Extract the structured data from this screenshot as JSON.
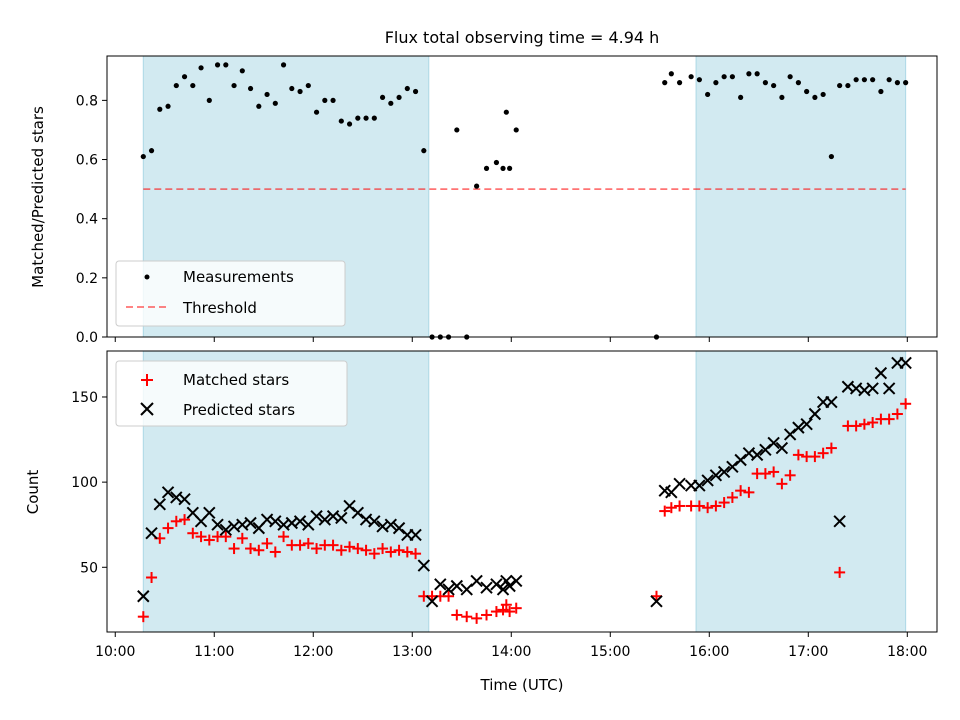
{
  "title": "Flux total observing time = 4.94 h",
  "colors": {
    "shade": "#add8e6",
    "measurement": "#000000",
    "threshold": "#ff0000",
    "matched": "#ff0000",
    "predicted": "#000000"
  },
  "chart_data": [
    {
      "type": "scatter",
      "panel": "top",
      "xlabel": "",
      "ylabel": "Matched/Predicted stars",
      "xlim": [
        "09:55",
        "18:18"
      ],
      "ylim": [
        0,
        0.95
      ],
      "yticks": [
        0.0,
        0.2,
        0.4,
        0.6,
        0.8
      ],
      "yticklabels": [
        "0.0",
        "0.2",
        "0.4",
        "0.6",
        "0.8"
      ],
      "grid": false,
      "legend_position": "lower-left",
      "shaded_intervals": [
        [
          "10:17",
          "13:10"
        ],
        [
          "15:52",
          "17:59"
        ]
      ],
      "threshold": {
        "name": "Threshold",
        "y": 0.5,
        "x_range": [
          "10:17",
          "17:59"
        ],
        "style": "dashed"
      },
      "series": [
        {
          "name": "Measurements",
          "marker": "dot",
          "x": [
            "10:17",
            "10:22",
            "10:27",
            "10:32",
            "10:37",
            "10:42",
            "10:47",
            "10:52",
            "10:57",
            "11:02",
            "11:07",
            "11:12",
            "11:17",
            "11:22",
            "11:27",
            "11:32",
            "11:37",
            "11:42",
            "11:47",
            "11:52",
            "11:57",
            "12:02",
            "12:07",
            "12:12",
            "12:17",
            "12:22",
            "12:27",
            "12:32",
            "12:37",
            "12:42",
            "12:47",
            "12:52",
            "12:57",
            "13:02",
            "13:07",
            "13:12",
            "13:17",
            "13:22",
            "13:27",
            "13:33",
            "13:39",
            "13:45",
            "13:51",
            "13:57",
            "14:03",
            "13:55",
            "13:59",
            "15:28",
            "15:33",
            "15:37",
            "15:42",
            "15:49",
            "15:54",
            "15:59",
            "16:04",
            "16:09",
            "16:14",
            "16:19",
            "16:24",
            "16:29",
            "16:34",
            "16:39",
            "16:44",
            "16:49",
            "16:54",
            "16:59",
            "17:04",
            "17:09",
            "17:14",
            "17:19",
            "17:24",
            "17:29",
            "17:34",
            "17:39",
            "17:44",
            "17:49",
            "17:54",
            "17:59"
          ],
          "y": [
            0.61,
            0.63,
            0.77,
            0.78,
            0.85,
            0.88,
            0.85,
            0.91,
            0.8,
            0.92,
            0.92,
            0.85,
            0.9,
            0.84,
            0.78,
            0.82,
            0.79,
            0.92,
            0.84,
            0.83,
            0.85,
            0.76,
            0.8,
            0.8,
            0.73,
            0.72,
            0.74,
            0.74,
            0.74,
            0.81,
            0.79,
            0.81,
            0.84,
            0.83,
            0.63,
            0.0,
            0.0,
            0.0,
            0.7,
            0.0,
            0.51,
            0.57,
            0.59,
            0.76,
            0.7,
            0.57,
            0.57,
            0.0,
            0.86,
            0.89,
            0.86,
            0.88,
            0.87,
            0.82,
            0.86,
            0.88,
            0.88,
            0.81,
            0.89,
            0.89,
            0.86,
            0.85,
            0.81,
            0.88,
            0.86,
            0.83,
            0.81,
            0.82,
            0.61,
            0.85,
            0.85,
            0.87,
            0.87,
            0.87,
            0.83,
            0.87,
            0.86,
            0.86
          ]
        }
      ]
    },
    {
      "type": "scatter",
      "panel": "bottom",
      "xlabel": "Time (UTC)",
      "ylabel": "Count",
      "xlim": [
        "09:55",
        "18:18"
      ],
      "ylim": [
        12,
        177
      ],
      "xticks": [
        "10:00",
        "11:00",
        "12:00",
        "13:00",
        "14:00",
        "15:00",
        "16:00",
        "17:00",
        "18:00"
      ],
      "yticks": [
        50,
        100,
        150
      ],
      "yticklabels": [
        "50",
        "100",
        "150"
      ],
      "grid": false,
      "legend_position": "upper-left",
      "shaded_intervals": [
        [
          "10:17",
          "13:10"
        ],
        [
          "15:52",
          "17:59"
        ]
      ],
      "series": [
        {
          "name": "Matched stars",
          "marker": "plus",
          "x": [
            "10:17",
            "10:22",
            "10:27",
            "10:32",
            "10:37",
            "10:42",
            "10:47",
            "10:52",
            "10:57",
            "11:02",
            "11:07",
            "11:12",
            "11:17",
            "11:22",
            "11:27",
            "11:32",
            "11:37",
            "11:42",
            "11:47",
            "11:52",
            "11:57",
            "12:02",
            "12:07",
            "12:12",
            "12:17",
            "12:22",
            "12:27",
            "12:32",
            "12:37",
            "12:42",
            "12:47",
            "12:52",
            "12:57",
            "13:02",
            "13:07",
            "13:12",
            "13:17",
            "13:22",
            "13:27",
            "13:33",
            "13:39",
            "13:45",
            "13:51",
            "13:57",
            "14:03",
            "13:55",
            "13:59",
            "15:28",
            "15:33",
            "15:37",
            "15:42",
            "15:49",
            "15:54",
            "15:59",
            "16:04",
            "16:09",
            "16:14",
            "16:19",
            "16:24",
            "16:29",
            "16:34",
            "16:39",
            "16:44",
            "16:49",
            "16:54",
            "16:59",
            "17:04",
            "17:09",
            "17:14",
            "17:19",
            "17:24",
            "17:29",
            "17:34",
            "17:39",
            "17:44",
            "17:49",
            "17:54",
            "17:59"
          ],
          "y": [
            21,
            44,
            67,
            73,
            77,
            78,
            70,
            68,
            66,
            68,
            68,
            61,
            67,
            61,
            60,
            64,
            59,
            68,
            63,
            63,
            64,
            61,
            63,
            63,
            60,
            62,
            61,
            60,
            58,
            61,
            59,
            60,
            59,
            58,
            33,
            33,
            33,
            33,
            22,
            21,
            20,
            22,
            24,
            28,
            26,
            25,
            24,
            33,
            83,
            85,
            86,
            86,
            86,
            85,
            86,
            88,
            91,
            95,
            94,
            105,
            105,
            106,
            99,
            104,
            116,
            115,
            115,
            117,
            120,
            47,
            133,
            133,
            134,
            135,
            137,
            137,
            140,
            146
          ]
        },
        {
          "name": "Predicted stars",
          "marker": "x",
          "x": [
            "10:17",
            "10:22",
            "10:27",
            "10:32",
            "10:37",
            "10:42",
            "10:47",
            "10:52",
            "10:57",
            "11:02",
            "11:07",
            "11:12",
            "11:17",
            "11:22",
            "11:27",
            "11:32",
            "11:37",
            "11:42",
            "11:47",
            "11:52",
            "11:57",
            "12:02",
            "12:07",
            "12:12",
            "12:17",
            "12:22",
            "12:27",
            "12:32",
            "12:37",
            "12:42",
            "12:47",
            "12:52",
            "12:57",
            "13:02",
            "13:07",
            "13:12",
            "13:17",
            "13:22",
            "13:27",
            "13:33",
            "13:39",
            "13:45",
            "13:51",
            "13:57",
            "14:03",
            "13:55",
            "13:59",
            "15:28",
            "15:33",
            "15:37",
            "15:42",
            "15:49",
            "15:54",
            "15:59",
            "16:04",
            "16:09",
            "16:14",
            "16:19",
            "16:24",
            "16:29",
            "16:34",
            "16:39",
            "16:44",
            "16:49",
            "16:54",
            "16:59",
            "17:04",
            "17:09",
            "17:14",
            "17:19",
            "17:24",
            "17:29",
            "17:34",
            "17:39",
            "17:44",
            "17:49",
            "17:54",
            "17:59"
          ],
          "y": [
            33,
            70,
            87,
            94,
            91,
            90,
            82,
            77,
            82,
            75,
            72,
            74,
            75,
            76,
            73,
            78,
            77,
            75,
            76,
            77,
            75,
            80,
            78,
            80,
            79,
            86,
            82,
            78,
            77,
            74,
            75,
            73,
            69,
            69,
            51,
            30,
            40,
            37,
            39,
            37,
            42,
            38,
            40,
            42,
            42,
            37,
            39,
            30,
            95,
            94,
            99,
            98,
            98,
            101,
            104,
            106,
            109,
            113,
            117,
            116,
            119,
            123,
            120,
            128,
            132,
            134,
            140,
            147,
            147,
            77,
            156,
            155,
            154,
            155,
            164,
            155,
            170,
            170
          ]
        }
      ]
    }
  ]
}
